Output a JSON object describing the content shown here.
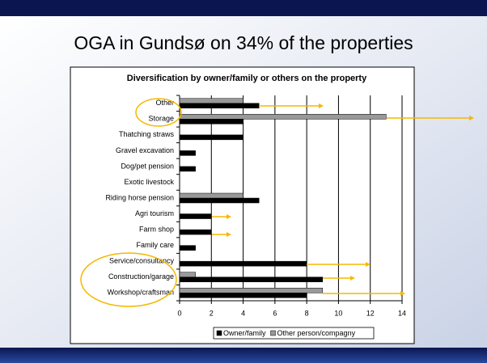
{
  "slide_title": "OGA in Gundsø on 34% of the properties",
  "chart_data": {
    "type": "bar",
    "orientation": "horizontal",
    "title": "Diversification by owner/family or others on the property",
    "categories": [
      "Other",
      "Storage",
      "Thatching straws",
      "Gravel excavation",
      "Dog/pet pension",
      "Exotic livestock",
      "Riding horse pension",
      "Agri tourism",
      "Farm shop",
      "Family care",
      "Service/consultancy",
      "Construction/garage",
      "Workshop/craftsman"
    ],
    "series": [
      {
        "name": "Owner/family",
        "color": "#000000",
        "values": [
          5,
          4,
          4,
          1,
          1,
          0,
          5,
          2,
          2,
          1,
          8,
          9,
          8
        ]
      },
      {
        "name": "Other person/compagny",
        "color": "#999999",
        "values": [
          4,
          13,
          0,
          0,
          0,
          0,
          4,
          0,
          0,
          0,
          0,
          1,
          9
        ]
      }
    ],
    "xlim": [
      0,
      14
    ],
    "xticks": [
      0,
      2,
      4,
      6,
      8,
      10,
      12,
      14
    ],
    "grid": true,
    "legend": "bottom"
  }
}
